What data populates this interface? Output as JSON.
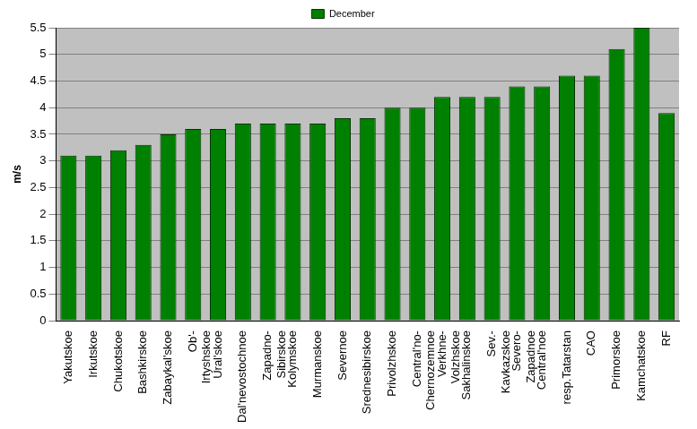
{
  "chart_data": {
    "type": "bar",
    "y_label": "m/s",
    "categories": [
      "Yakutskoe",
      "Irkutskoe",
      "Chukotskoe",
      "Bashkirskoe",
      "Zabaykal'skoe",
      "Ob'-\nIrtyshskoe",
      "Ural'skoe",
      "Dal'nevostochnoe",
      "Zapadno-\nSibirskoe",
      "Kolymskoe",
      "Murmanskoe",
      "Severnoe",
      "Srednesibirskoe",
      "Privolzhskoe",
      "Central'no-\nChernozemnoe",
      "Verkhne-\nVolzhskoe",
      "Sakhalinskoe",
      "Sev.-\nKavkazskoe",
      "Severo-\nZapadnoe",
      "Central'noe",
      "resp.Tatarstan",
      "CAO",
      "Primorskoe",
      "Kamchatskoe",
      "RF"
    ],
    "series": [
      {
        "name": "December",
        "color": "#008000",
        "values": [
          3.1,
          3.1,
          3.2,
          3.3,
          3.5,
          3.6,
          3.6,
          3.7,
          3.7,
          3.7,
          3.7,
          3.8,
          3.8,
          4.0,
          4.0,
          4.2,
          4.2,
          4.2,
          4.4,
          4.4,
          4.6,
          4.6,
          5.1,
          5.5,
          3.9
        ]
      }
    ],
    "ylim": [
      0,
      5.5
    ],
    "yticks": [
      0,
      0.5,
      1,
      1.5,
      2,
      2.5,
      3,
      3.5,
      4,
      4.5,
      5,
      5.5
    ],
    "grid": true,
    "legend": "top"
  }
}
